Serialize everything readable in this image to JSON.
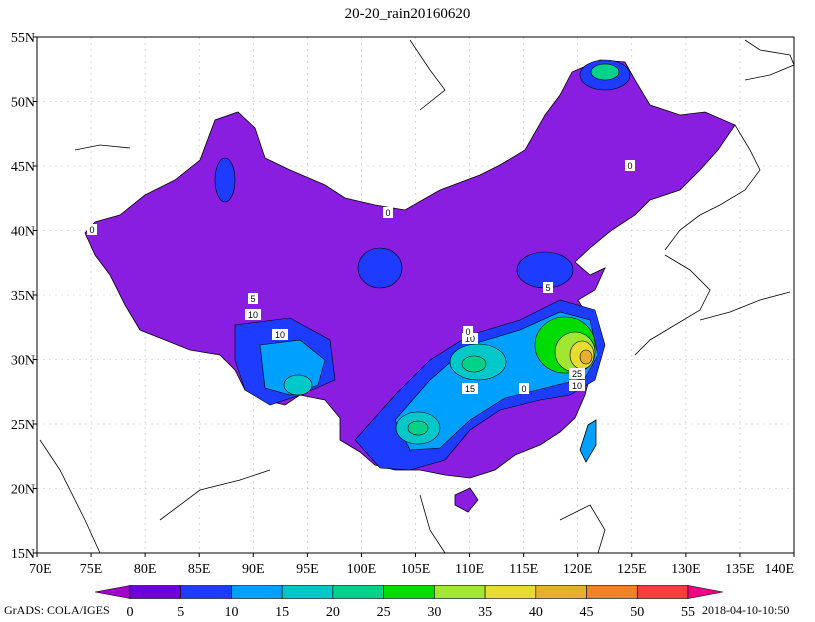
{
  "title": "20-20_rain20160620",
  "axes": {
    "x_ticks": [
      "70E",
      "75E",
      "80E",
      "85E",
      "90E",
      "95E",
      "100E",
      "105E",
      "110E",
      "115E",
      "120E",
      "125E",
      "130E",
      "135E",
      "140E"
    ],
    "y_ticks": [
      "55N",
      "50N",
      "45N",
      "40N",
      "35N",
      "30N",
      "25N",
      "20N",
      "15N"
    ],
    "lon_range": [
      70,
      140
    ],
    "lat_range": [
      15,
      55
    ],
    "grid": true
  },
  "colorbar": {
    "levels": [
      "0",
      "5",
      "10",
      "15",
      "20",
      "25",
      "30",
      "35",
      "40",
      "45",
      "50",
      "55"
    ],
    "colors": [
      "#a000c8",
      "#6e00dc",
      "#1e3cff",
      "#00a0ff",
      "#00c8c8",
      "#00d28c",
      "#00dc00",
      "#a0e632",
      "#e6dc32",
      "#e6af2d",
      "#f08228",
      "#fa3c3c",
      "#f00082"
    ]
  },
  "contour_labels": [
    "0",
    "0",
    "0",
    "5",
    "5",
    "10",
    "10",
    "10",
    "15",
    "0",
    "25",
    "10",
    "0"
  ],
  "footer": {
    "left": "GrADS: COLA/IGES",
    "right": "2018-04-10-10:50"
  }
}
